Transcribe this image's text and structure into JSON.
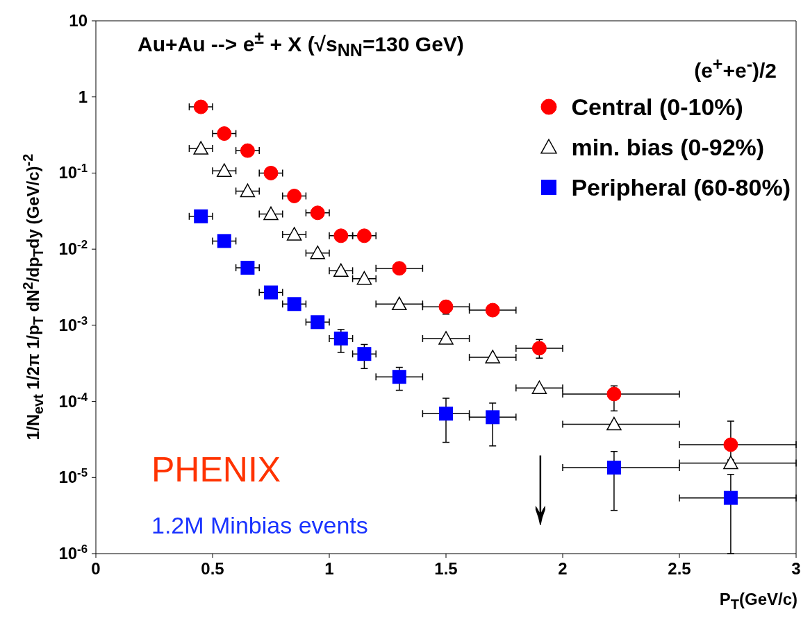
{
  "chart_data": {
    "type": "scatter",
    "title": "Au+Au --> e$^{±}$ + X (√s$_{NN}$=130 GeV)",
    "xlabel": "P$_{T}$(GeV/c)",
    "ylabel": "1/N$_{evt}$ 1/2π 1/p$_{T}$ dN$^{2}$/dp$_{T}$dy (GeV/c)$^{-2}$",
    "legend_title": "(e$^{+}$+e$^{-}$)/2",
    "legend": "top right",
    "log": "y",
    "xlim": [
      0,
      3
    ],
    "xticks": [
      0,
      0.5,
      1,
      1.5,
      2,
      2.5,
      3
    ],
    "ylim": [
      1e-06,
      10
    ],
    "yticks": [
      {
        "value": 1e-06,
        "label": "10$^{-6}$"
      },
      {
        "value": 1e-05,
        "label": "10$^{-5}$"
      },
      {
        "value": 0.0001,
        "label": "10$^{-4}$"
      },
      {
        "value": 0.001,
        "label": "10$^{-3}$"
      },
      {
        "value": 0.01,
        "label": "10$^{-2}$"
      },
      {
        "value": 0.1,
        "label": "10$^{-1}$"
      },
      1,
      10
    ],
    "x": [
      0.45,
      0.55,
      0.65,
      0.75,
      0.85,
      0.95,
      1.05,
      1.15,
      1.3,
      1.5,
      1.7,
      1.9,
      2.22,
      2.72
    ],
    "series": [
      {
        "name": "Central (0-10%)",
        "color": "#ff0000",
        "marker": "circle",
        "values": [
          0.74,
          0.33,
          0.197,
          0.1,
          0.05,
          0.03,
          0.015,
          0.015,
          0.0056,
          0.00175,
          0.00158,
          0.0005,
          0.000125,
          2.7e-05
        ],
        "errors": [
          null,
          null,
          null,
          null,
          null,
          null,
          null,
          null,
          null,
          [
            0.0014,
            0.0021
          ],
          null,
          [
            0.00037,
            0.00065
          ],
          [
            7.5e-05,
            0.00016
          ],
          [
            1.7e-05,
            5.5e-05
          ]
        ],
        "xerrors": [
          [
            0.4,
            0.5
          ],
          [
            0.5,
            0.6
          ],
          [
            0.6,
            0.7
          ],
          [
            0.7,
            0.8
          ],
          [
            0.8,
            0.9
          ],
          [
            0.9,
            1.0
          ],
          [
            1.0,
            1.1
          ],
          [
            1.1,
            1.2
          ],
          [
            1.2,
            1.4
          ],
          [
            1.4,
            1.6
          ],
          [
            1.6,
            1.8
          ],
          [
            1.8,
            2.0
          ],
          [
            2.0,
            2.5
          ],
          [
            2.5,
            3.0
          ]
        ]
      },
      {
        "name": "min. bias (0-92%)",
        "color": "#000000",
        "marker": "triangle",
        "values": [
          0.21,
          0.107,
          0.058,
          0.029,
          0.0156,
          0.0089,
          0.0052,
          0.0041,
          0.0019,
          0.00067,
          0.00038,
          0.00015,
          5e-05,
          1.55e-05
        ],
        "xerrors": [
          [
            0.4,
            0.5
          ],
          [
            0.5,
            0.6
          ],
          [
            0.6,
            0.7
          ],
          [
            0.7,
            0.8
          ],
          [
            0.8,
            0.9
          ],
          [
            0.9,
            1.0
          ],
          [
            1.0,
            1.1
          ],
          [
            1.1,
            1.2
          ],
          [
            1.2,
            1.4
          ],
          [
            1.4,
            1.6
          ],
          [
            1.6,
            1.8
          ],
          [
            1.8,
            2.0
          ],
          [
            2.0,
            2.5
          ],
          [
            2.5,
            3.0
          ]
        ]
      },
      {
        "name": "Peripheral (60-80%)",
        "color": "#0000ff",
        "marker": "square",
        "values": [
          0.027,
          0.0128,
          0.0057,
          0.0027,
          0.0019,
          0.0011,
          0.00067,
          0.00042,
          0.00021,
          6.9e-05,
          6.2e-05,
          null,
          1.35e-05,
          5.4e-06
        ],
        "errors": [
          null,
          null,
          null,
          null,
          null,
          null,
          [
            0.00044,
            0.00088
          ],
          [
            0.00027,
            0.00056
          ],
          [
            0.00014,
            0.00028
          ],
          [
            2.9e-05,
            0.00011
          ],
          [
            2.6e-05,
            9.5e-05
          ],
          null,
          [
            3.7e-06,
            2.2e-05
          ],
          [
            1e-06,
            1.1e-05
          ]
        ],
        "xerrors": [
          [
            0.4,
            0.5
          ],
          [
            0.5,
            0.6
          ],
          [
            0.6,
            0.7
          ],
          [
            0.7,
            0.8
          ],
          [
            0.8,
            0.9
          ],
          [
            0.9,
            1.0
          ],
          [
            1.0,
            1.1
          ],
          [
            1.1,
            1.2
          ],
          [
            1.2,
            1.4
          ],
          [
            1.4,
            1.6
          ],
          [
            1.6,
            1.8
          ],
          null,
          [
            2.0,
            2.5
          ],
          [
            2.5,
            3.0
          ]
        ]
      }
    ],
    "annotations": [
      "↓",
      "PHENIX",
      "1.2M Minbias events"
    ]
  }
}
